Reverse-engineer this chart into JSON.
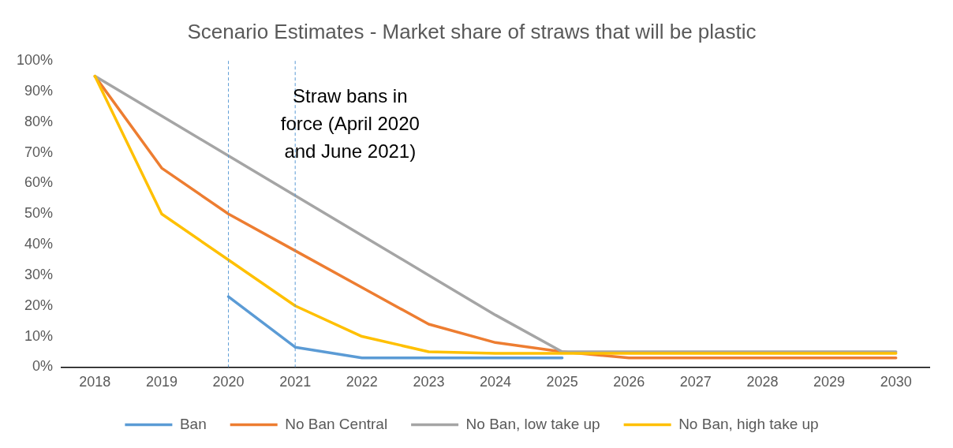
{
  "chart_data": {
    "type": "line",
    "title": "Scenario Estimates - Market share of straws that will be plastic",
    "categories": [
      "2018",
      "2019",
      "2020",
      "2021",
      "2022",
      "2023",
      "2024",
      "2025",
      "2026",
      "2027",
      "2028",
      "2029",
      "2030"
    ],
    "series": [
      {
        "name": "Ban",
        "color": "#5b9bd5",
        "values": [
          null,
          null,
          23,
          6.5,
          3,
          3,
          3,
          3,
          null,
          null,
          null,
          null,
          null
        ]
      },
      {
        "name": "No Ban Central",
        "color": "#ed7d31",
        "values": [
          95,
          65,
          50,
          38,
          26,
          14,
          8,
          5,
          3,
          3,
          3,
          3,
          3
        ]
      },
      {
        "name": "No Ban, low take up",
        "color": "#a5a5a5",
        "values": [
          95,
          82,
          69,
          56,
          43,
          30,
          17,
          5,
          5,
          5,
          5,
          5,
          5
        ]
      },
      {
        "name": "No Ban, high take up",
        "color": "#ffc000",
        "values": [
          95,
          50,
          35,
          20,
          10,
          5,
          4.5,
          4.5,
          4.5,
          4.5,
          4.5,
          4.5,
          4.5
        ]
      }
    ],
    "ylim": [
      0,
      100
    ],
    "yticks": [
      {
        "value": 0,
        "label": "0%"
      },
      {
        "value": 10,
        "label": "10%"
      },
      {
        "value": 20,
        "label": "20%"
      },
      {
        "value": 30,
        "label": "30%"
      },
      {
        "value": 40,
        "label": "40%"
      },
      {
        "value": 50,
        "label": "50%"
      },
      {
        "value": 60,
        "label": "60%"
      },
      {
        "value": 70,
        "label": "70%"
      },
      {
        "value": 80,
        "label": "80%"
      },
      {
        "value": 90,
        "label": "90%"
      },
      {
        "value": 100,
        "label": "100%"
      }
    ],
    "ref_lines": [
      {
        "axis": "x",
        "value": "2020",
        "color": "#5b9bd5",
        "line_style": "dashed"
      },
      {
        "axis": "x",
        "value": "2021",
        "color": "#5b9bd5",
        "line_style": "dashed"
      }
    ],
    "annotations": [
      "Straw bans in force (April 2020 and June 2021)"
    ],
    "grid": false,
    "legend": "bottom",
    "marker": "none",
    "line_style": "solid"
  }
}
